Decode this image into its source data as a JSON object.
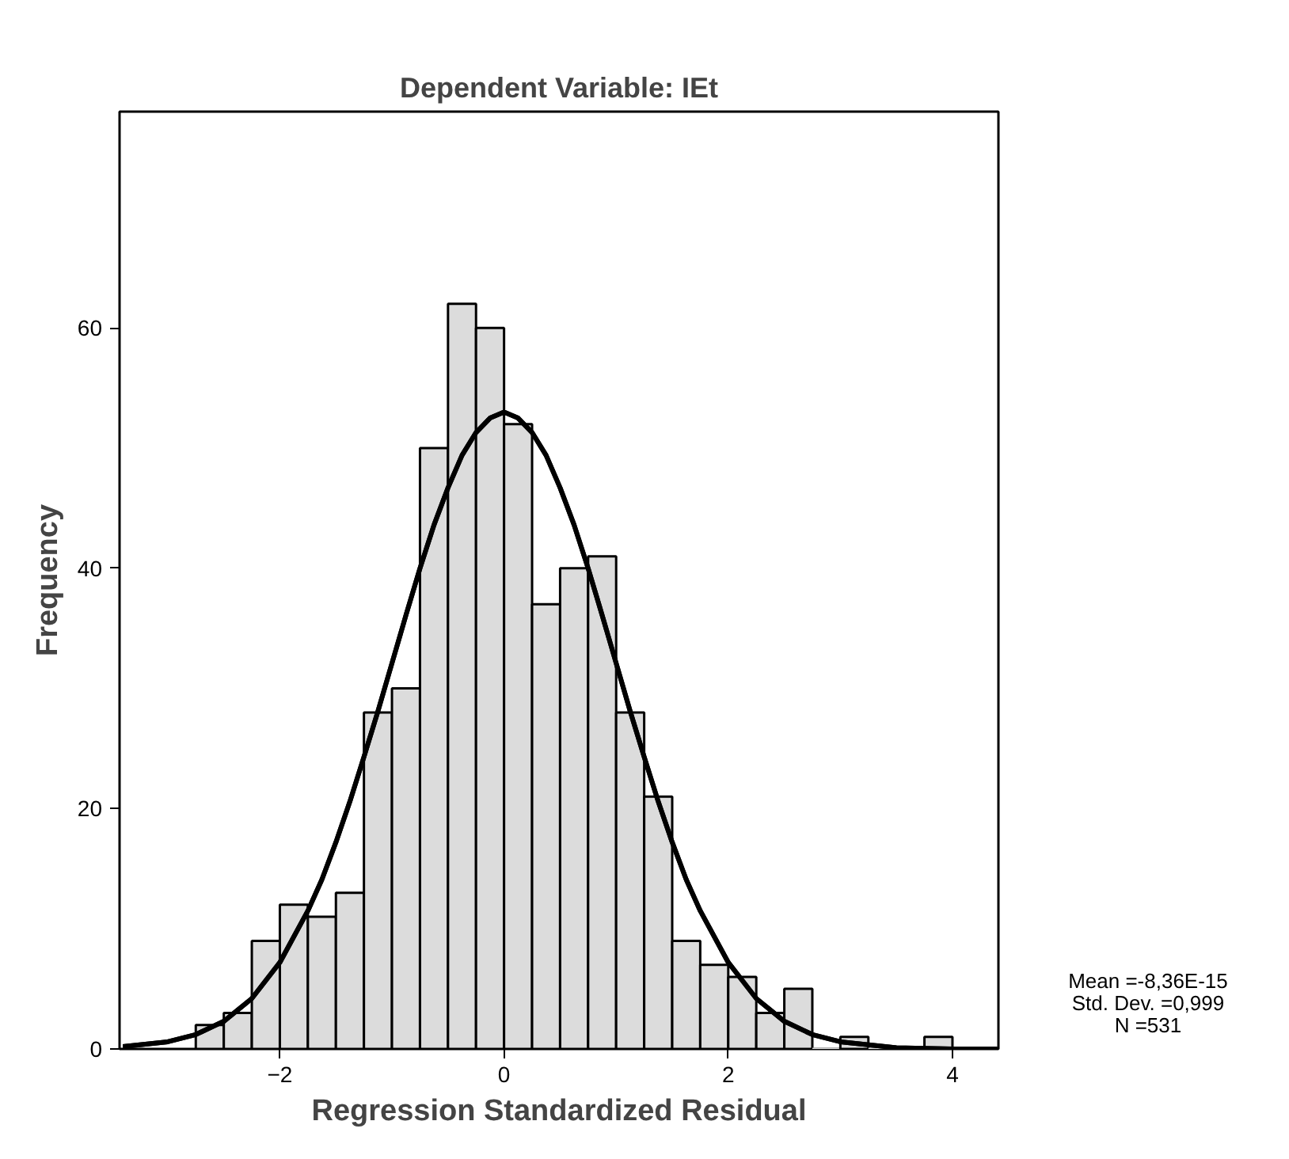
{
  "chart_data": {
    "type": "histogram",
    "title": "Dependent Variable: IEt",
    "xlabel": "Regression Standardized Residual",
    "ylabel": "Frequency",
    "bins": [
      -2.75,
      -2.5,
      -2.25,
      -2.0,
      -1.75,
      -1.5,
      -1.25,
      -1.0,
      -0.75,
      -0.5,
      -0.25,
      0.0,
      0.25,
      0.5,
      0.75,
      1.0,
      1.25,
      1.5,
      1.75,
      2.0,
      2.25,
      2.5,
      2.75,
      3.0,
      3.25,
      3.5,
      3.75,
      4.0
    ],
    "values": [
      2,
      3,
      9,
      12,
      11,
      13,
      28,
      30,
      50,
      62,
      60,
      52,
      37,
      40,
      41,
      28,
      21,
      9,
      7,
      6,
      3,
      5,
      0,
      1,
      0,
      0,
      1
    ],
    "color": "#dcdcdc",
    "series": [
      {
        "type": "line",
        "color": "#000000",
        "x": [
          -3.4,
          -3.0,
          -2.75,
          -2.5,
          -2.25,
          -2.0,
          -1.75,
          -1.625,
          -1.5,
          -1.375,
          -1.25,
          -1.125,
          -1.0,
          -0.875,
          -0.75,
          -0.625,
          -0.5,
          -0.375,
          -0.25,
          -0.125,
          0.0,
          0.125,
          0.25,
          0.375,
          0.5,
          0.625,
          0.75,
          0.875,
          1.0,
          1.125,
          1.25,
          1.375,
          1.5,
          1.625,
          1.75,
          2.0,
          2.25,
          2.5,
          2.75,
          3.0,
          3.5,
          4.0,
          4.4
        ],
        "values": [
          0.2,
          0.6,
          1.2,
          2.3,
          4.2,
          7.2,
          11.5,
          14.1,
          17.2,
          20.6,
          24.3,
          28.1,
          32.1,
          36.1,
          40.0,
          43.6,
          46.7,
          49.4,
          51.3,
          52.5,
          53.0,
          52.5,
          51.3,
          49.4,
          46.7,
          43.6,
          40.0,
          36.1,
          32.1,
          28.1,
          24.3,
          20.6,
          17.2,
          14.1,
          11.5,
          7.2,
          4.2,
          2.3,
          1.2,
          0.6,
          0.1,
          0.0,
          0.0
        ]
      }
    ],
    "xlim": [
      -3.43,
      4.41
    ],
    "ylim": [
      0,
      78
    ],
    "xticks": [
      -2,
      0,
      2,
      4
    ],
    "yticks": [
      0,
      20,
      40,
      60
    ],
    "grid": false,
    "legend": false,
    "annotations": [
      "Mean =-8,36E-15",
      "Std. Dev. =0,999",
      "N =531"
    ]
  }
}
